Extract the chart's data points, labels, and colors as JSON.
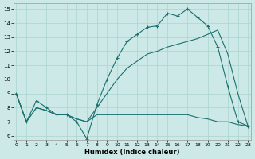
{
  "xlabel": "Humidex (Indice chaleur)",
  "bg_color": "#cce9e7",
  "grid_color": "#aad4d0",
  "line_color": "#1a7070",
  "xlim": [
    -0.3,
    23.3
  ],
  "ylim": [
    5.7,
    15.4
  ],
  "xticks": [
    0,
    1,
    2,
    3,
    4,
    5,
    6,
    7,
    8,
    9,
    10,
    11,
    12,
    13,
    14,
    15,
    16,
    17,
    18,
    19,
    20,
    21,
    22,
    23
  ],
  "yticks": [
    6,
    7,
    8,
    9,
    10,
    11,
    12,
    13,
    14,
    15
  ],
  "line1_x": [
    0,
    1,
    2,
    3,
    4,
    5,
    6,
    7,
    8,
    9,
    10,
    11,
    12,
    13,
    14,
    15,
    16,
    17,
    18,
    19,
    20,
    21,
    22,
    23
  ],
  "line1_y": [
    9.0,
    7.0,
    8.5,
    8.0,
    7.5,
    7.5,
    7.0,
    5.8,
    8.2,
    10.0,
    11.5,
    12.7,
    13.2,
    13.7,
    13.8,
    14.7,
    14.5,
    15.0,
    14.4,
    13.8,
    12.3,
    9.5,
    7.0,
    6.7
  ],
  "line2_x": [
    0,
    1,
    2,
    3,
    4,
    5,
    6,
    7,
    8,
    9,
    10,
    11,
    12,
    13,
    14,
    15,
    16,
    17,
    18,
    19,
    20,
    21,
    22,
    23
  ],
  "line2_y": [
    9.0,
    7.0,
    8.0,
    7.8,
    7.5,
    7.5,
    7.2,
    7.0,
    8.0,
    9.0,
    10.0,
    10.8,
    11.3,
    11.8,
    12.0,
    12.3,
    12.5,
    12.7,
    12.9,
    13.2,
    13.5,
    11.8,
    9.0,
    6.7
  ],
  "line3_x": [
    0,
    1,
    2,
    3,
    4,
    5,
    6,
    7,
    8,
    9,
    10,
    11,
    12,
    13,
    14,
    15,
    16,
    17,
    18,
    19,
    20,
    21,
    22,
    23
  ],
  "line3_y": [
    9.0,
    7.0,
    8.0,
    7.8,
    7.5,
    7.5,
    7.2,
    7.0,
    7.5,
    7.5,
    7.5,
    7.5,
    7.5,
    7.5,
    7.5,
    7.5,
    7.5,
    7.5,
    7.3,
    7.2,
    7.0,
    7.0,
    6.8,
    6.7
  ]
}
